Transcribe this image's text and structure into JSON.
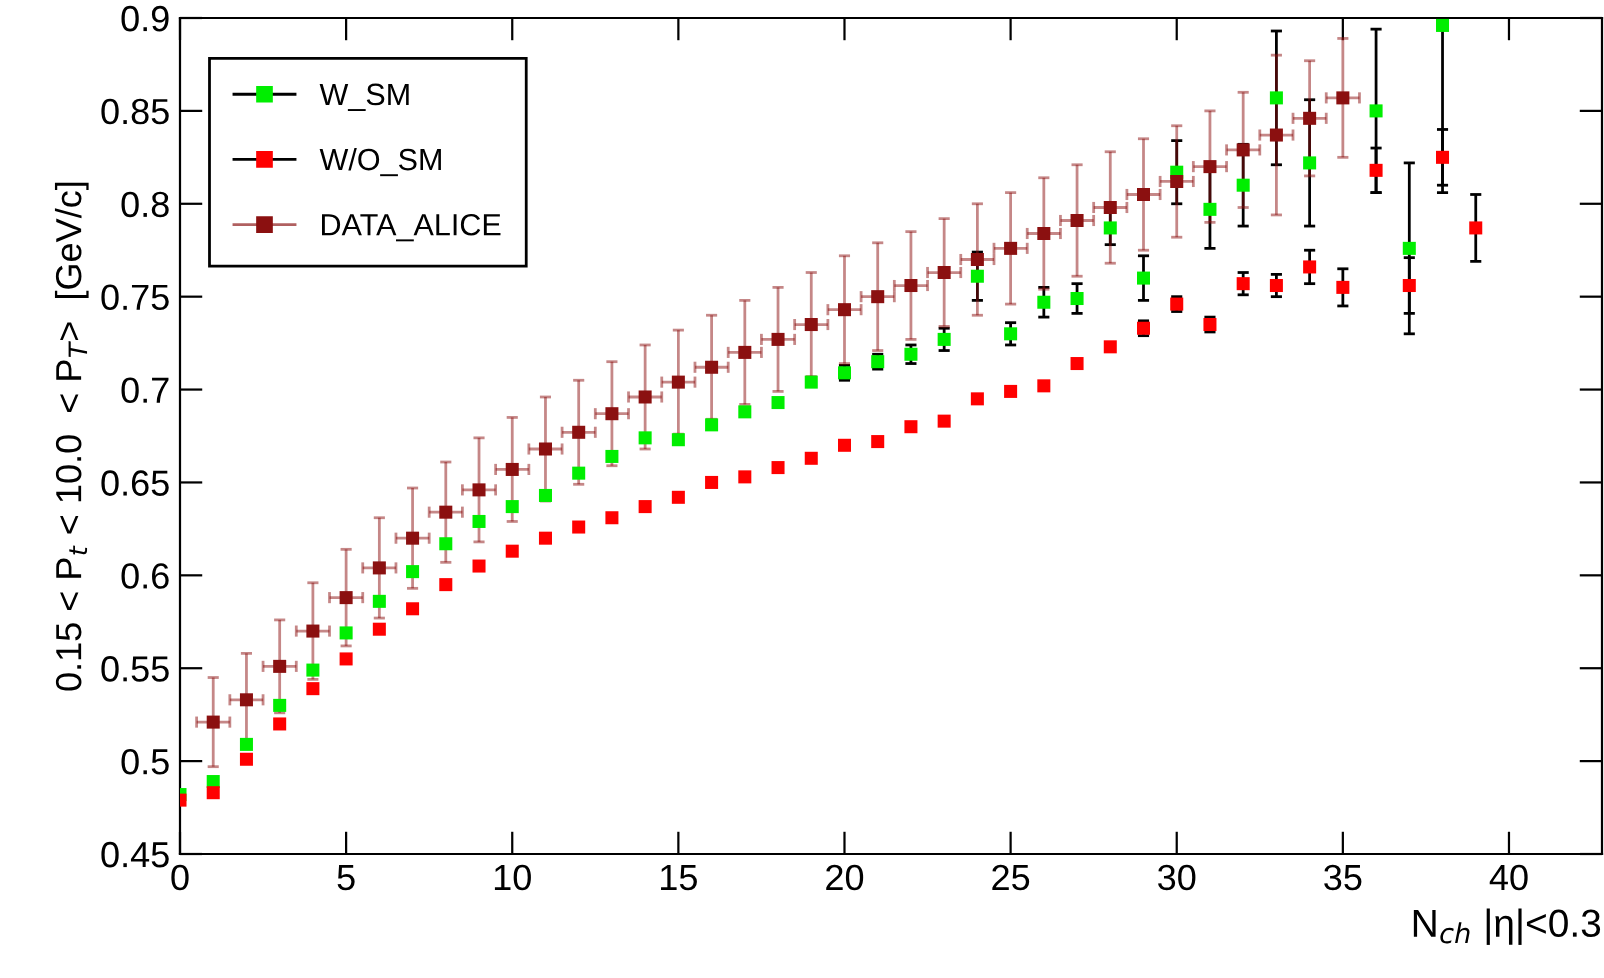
{
  "chart_data": {
    "type": "scatter",
    "xlabel": "N$_{ch}$ |η|<0.3",
    "ylabel": "0.15 < P$_{t}$ < 10.0  < P$_{T}$>  [GeV/c]",
    "xlim": [
      0,
      42.8
    ],
    "xticks": [
      0,
      5,
      10,
      15,
      20,
      25,
      30,
      35,
      40
    ],
    "ylim": [
      0.45,
      0.9
    ],
    "yticks": [
      0.45,
      0.5,
      0.55,
      0.6,
      0.65,
      0.7,
      0.75,
      0.8,
      0.85,
      0.9
    ],
    "grid": false,
    "legend": "top left",
    "marker": "square",
    "series": [
      {
        "name": "W_SM",
        "color": "#00ee00",
        "x": [
          0,
          1,
          2,
          3,
          4,
          5,
          6,
          7,
          8,
          9,
          10,
          11,
          12,
          13,
          14,
          15,
          16,
          17,
          18,
          19,
          20,
          21,
          22,
          23,
          24,
          25,
          26,
          27,
          28,
          29,
          30,
          31,
          32,
          33,
          34,
          36,
          37,
          38
        ],
        "values": [
          0.482,
          0.489,
          0.509,
          0.53,
          0.549,
          0.569,
          0.586,
          0.602,
          0.617,
          0.629,
          0.637,
          0.643,
          0.655,
          0.664,
          0.674,
          0.673,
          0.681,
          0.688,
          0.693,
          0.704,
          0.709,
          0.715,
          0.719,
          0.727,
          0.761,
          0.73,
          0.747,
          0.749,
          0.787,
          0.76,
          0.817,
          0.797,
          0.81,
          0.857,
          0.822,
          0.85,
          0.776,
          0.896
        ],
        "errors": [
          null,
          null,
          null,
          null,
          null,
          null,
          null,
          null,
          null,
          null,
          null,
          null,
          null,
          null,
          null,
          null,
          null,
          null,
          null,
          null,
          0.004,
          0.004,
          0.005,
          0.006,
          0.013,
          0.006,
          0.008,
          0.008,
          0.009,
          0.012,
          0.017,
          0.021,
          0.022,
          0.036,
          0.034,
          0.044,
          0.046,
          [
            0.806,
            0.9
          ]
        ]
      },
      {
        "name": "W/O_SM",
        "color": "#ff0000",
        "x": [
          0,
          1,
          2,
          3,
          4,
          5,
          6,
          7,
          8,
          9,
          10,
          11,
          12,
          13,
          14,
          15,
          16,
          17,
          18,
          19,
          20,
          21,
          22,
          23,
          24,
          25,
          26,
          27,
          28,
          29,
          30,
          31,
          32,
          33,
          34,
          35,
          36,
          37,
          38,
          39
        ],
        "values": [
          0.479,
          0.483,
          0.501,
          0.52,
          0.539,
          0.555,
          0.571,
          0.582,
          0.595,
          0.605,
          0.613,
          0.62,
          0.626,
          0.631,
          0.637,
          0.642,
          0.65,
          0.653,
          0.658,
          0.663,
          0.67,
          0.672,
          0.68,
          0.683,
          0.695,
          0.699,
          0.702,
          0.714,
          0.723,
          0.733,
          0.746,
          0.735,
          0.757,
          0.756,
          0.766,
          0.755,
          0.818,
          0.756,
          0.825,
          0.787
        ],
        "errors": [
          null,
          null,
          null,
          null,
          null,
          null,
          null,
          null,
          null,
          null,
          null,
          null,
          null,
          null,
          null,
          null,
          null,
          null,
          null,
          null,
          null,
          null,
          null,
          null,
          null,
          null,
          null,
          null,
          null,
          0.004,
          0.004,
          0.004,
          0.006,
          0.006,
          0.009,
          0.01,
          0.012,
          0.015,
          0.015,
          0.018
        ]
      },
      {
        "name": "DATA_ALICE",
        "color": "#8b1010",
        "x": [
          1,
          2,
          3,
          4,
          5,
          6,
          7,
          8,
          9,
          10,
          11,
          12,
          13,
          14,
          15,
          16,
          17,
          18,
          19,
          20,
          21,
          22,
          23,
          24,
          25,
          26,
          27,
          28,
          29,
          30,
          31,
          32,
          33,
          34,
          35
        ],
        "values": [
          0.521,
          0.533,
          0.551,
          0.57,
          0.588,
          0.604,
          0.62,
          0.634,
          0.646,
          0.657,
          0.668,
          0.677,
          0.687,
          0.696,
          0.704,
          0.712,
          0.72,
          0.727,
          0.735,
          0.743,
          0.75,
          0.756,
          0.763,
          0.77,
          0.776,
          0.784,
          0.791,
          0.798,
          0.805,
          0.812,
          0.82,
          0.829,
          0.837,
          0.846,
          0.857
        ],
        "errors": [
          0.024,
          0.025,
          0.025,
          0.026,
          0.026,
          0.027,
          0.027,
          0.027,
          0.028,
          0.028,
          0.028,
          0.028,
          0.028,
          0.028,
          0.028,
          0.028,
          0.028,
          0.028,
          0.028,
          0.029,
          0.029,
          0.029,
          0.029,
          0.03,
          0.03,
          0.03,
          0.03,
          0.03,
          0.03,
          0.03,
          0.03,
          0.031,
          0.043,
          0.031,
          0.032
        ],
        "xerrors": [
          0.5,
          0.5,
          0.5,
          0.5,
          0.5,
          0.5,
          0.5,
          0.5,
          0.5,
          0.5,
          0.5,
          0.5,
          0.5,
          0.5,
          0.5,
          0.5,
          0.5,
          0.5,
          0.5,
          0.5,
          0.5,
          0.5,
          0.5,
          0.5,
          0.5,
          0.5,
          0.5,
          0.5,
          0.5,
          0.5,
          0.5,
          0.5,
          0.5,
          0.5,
          0.5
        ]
      }
    ]
  }
}
